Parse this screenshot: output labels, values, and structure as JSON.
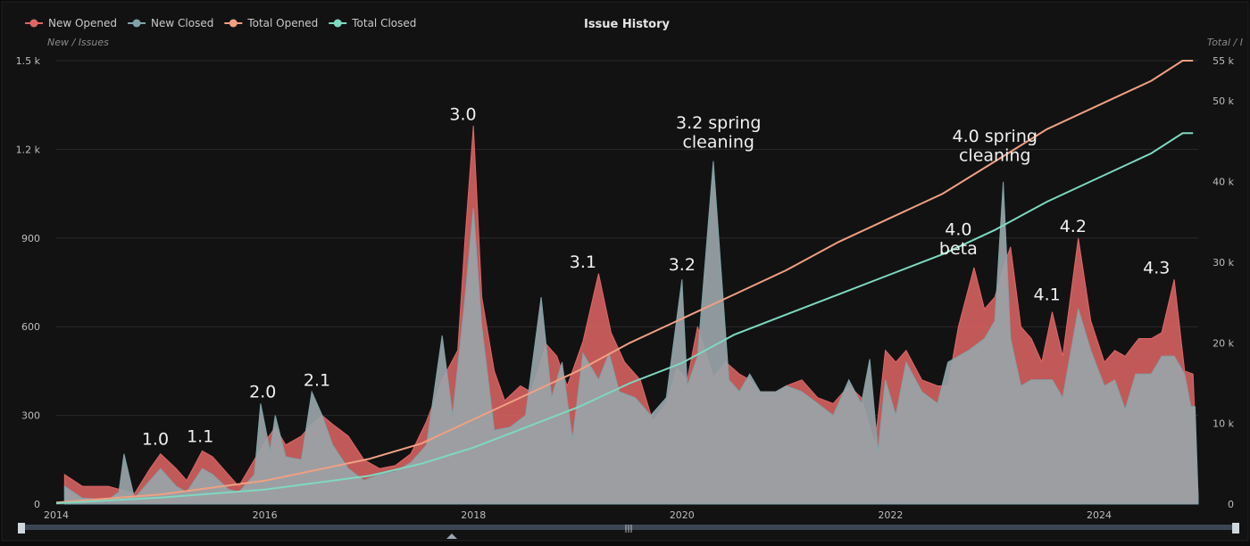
{
  "chart_data": {
    "type": "area",
    "title": "Issue History",
    "y_left_title": "New / Issues",
    "y_right_title": "Total / I",
    "y_left_ticks": [
      "0",
      "300",
      "600",
      "900",
      "1.2 k",
      "1.5 k"
    ],
    "y_right_ticks": [
      "0",
      "10 k",
      "20 k",
      "30 k",
      "40 k",
      "50 k",
      "55 k"
    ],
    "y_left_lim": [
      0,
      1500
    ],
    "y_right_lim": [
      0,
      55000
    ],
    "x_tick_labels": [
      "2014",
      "2016",
      "2018",
      "2020",
      "2022",
      "2024"
    ],
    "x_tick_values": [
      2014,
      2016,
      2018,
      2020,
      2022,
      2024
    ],
    "x_lim": [
      2014,
      2024.95
    ],
    "legend_position": "top-left",
    "series": [
      {
        "name": "New Opened",
        "color": "#e06666",
        "axis": "left",
        "kind": "area",
        "points": [
          [
            2014.08,
            100
          ],
          [
            2014.25,
            60
          ],
          [
            2014.5,
            60
          ],
          [
            2014.75,
            35
          ],
          [
            2014.9,
            120
          ],
          [
            2015.0,
            170
          ],
          [
            2015.15,
            120
          ],
          [
            2015.25,
            80
          ],
          [
            2015.4,
            180
          ],
          [
            2015.5,
            160
          ],
          [
            2015.65,
            100
          ],
          [
            2015.75,
            60
          ],
          [
            2015.9,
            150
          ],
          [
            2016.0,
            210
          ],
          [
            2016.1,
            260
          ],
          [
            2016.2,
            200
          ],
          [
            2016.35,
            230
          ],
          [
            2016.45,
            270
          ],
          [
            2016.55,
            300
          ],
          [
            2016.65,
            270
          ],
          [
            2016.8,
            230
          ],
          [
            2016.95,
            150
          ],
          [
            2017.1,
            120
          ],
          [
            2017.25,
            130
          ],
          [
            2017.4,
            170
          ],
          [
            2017.55,
            280
          ],
          [
            2017.7,
            420
          ],
          [
            2017.85,
            520
          ],
          [
            2017.92,
            900
          ],
          [
            2018.0,
            1280
          ],
          [
            2018.08,
            700
          ],
          [
            2018.2,
            450
          ],
          [
            2018.3,
            350
          ],
          [
            2018.45,
            400
          ],
          [
            2018.55,
            380
          ],
          [
            2018.7,
            540
          ],
          [
            2018.8,
            500
          ],
          [
            2018.9,
            400
          ],
          [
            2019.05,
            550
          ],
          [
            2019.2,
            780
          ],
          [
            2019.32,
            580
          ],
          [
            2019.45,
            480
          ],
          [
            2019.6,
            420
          ],
          [
            2019.72,
            280
          ],
          [
            2019.85,
            340
          ],
          [
            2019.95,
            460
          ],
          [
            2020.05,
            420
          ],
          [
            2020.15,
            600
          ],
          [
            2020.3,
            430
          ],
          [
            2020.42,
            480
          ],
          [
            2020.55,
            440
          ],
          [
            2020.65,
            420
          ],
          [
            2020.75,
            380
          ],
          [
            2020.9,
            380
          ],
          [
            2021.0,
            400
          ],
          [
            2021.15,
            420
          ],
          [
            2021.3,
            360
          ],
          [
            2021.45,
            340
          ],
          [
            2021.6,
            400
          ],
          [
            2021.72,
            360
          ],
          [
            2021.85,
            200
          ],
          [
            2021.95,
            520
          ],
          [
            2022.05,
            480
          ],
          [
            2022.15,
            520
          ],
          [
            2022.3,
            420
          ],
          [
            2022.45,
            400
          ],
          [
            2022.55,
            400
          ],
          [
            2022.65,
            600
          ],
          [
            2022.8,
            800
          ],
          [
            2022.9,
            660
          ],
          [
            2023.0,
            700
          ],
          [
            2023.08,
            800
          ],
          [
            2023.15,
            870
          ],
          [
            2023.25,
            600
          ],
          [
            2023.35,
            560
          ],
          [
            2023.45,
            480
          ],
          [
            2023.55,
            650
          ],
          [
            2023.65,
            500
          ],
          [
            2023.8,
            900
          ],
          [
            2023.92,
            620
          ],
          [
            2024.05,
            480
          ],
          [
            2024.15,
            520
          ],
          [
            2024.25,
            500
          ],
          [
            2024.38,
            560
          ],
          [
            2024.5,
            560
          ],
          [
            2024.6,
            580
          ],
          [
            2024.72,
            760
          ],
          [
            2024.82,
            450
          ],
          [
            2024.9,
            440
          ],
          [
            2024.95,
            20
          ]
        ]
      },
      {
        "name": "New Closed",
        "color": "#7fa3a8",
        "axis": "left",
        "kind": "area",
        "points": [
          [
            2014.08,
            60
          ],
          [
            2014.25,
            20
          ],
          [
            2014.5,
            15
          ],
          [
            2014.6,
            40
          ],
          [
            2014.65,
            170
          ],
          [
            2014.75,
            20
          ],
          [
            2014.9,
            80
          ],
          [
            2015.0,
            120
          ],
          [
            2015.15,
            60
          ],
          [
            2015.25,
            40
          ],
          [
            2015.4,
            120
          ],
          [
            2015.5,
            100
          ],
          [
            2015.65,
            50
          ],
          [
            2015.75,
            40
          ],
          [
            2015.9,
            100
          ],
          [
            2015.96,
            340
          ],
          [
            2016.05,
            180
          ],
          [
            2016.1,
            300
          ],
          [
            2016.2,
            160
          ],
          [
            2016.35,
            150
          ],
          [
            2016.45,
            380
          ],
          [
            2016.55,
            300
          ],
          [
            2016.65,
            200
          ],
          [
            2016.8,
            120
          ],
          [
            2016.95,
            80
          ],
          [
            2017.1,
            100
          ],
          [
            2017.25,
            110
          ],
          [
            2017.4,
            140
          ],
          [
            2017.55,
            200
          ],
          [
            2017.7,
            570
          ],
          [
            2017.8,
            300
          ],
          [
            2017.92,
            700
          ],
          [
            2018.0,
            1000
          ],
          [
            2018.08,
            600
          ],
          [
            2018.2,
            250
          ],
          [
            2018.35,
            260
          ],
          [
            2018.5,
            300
          ],
          [
            2018.65,
            700
          ],
          [
            2018.75,
            360
          ],
          [
            2018.85,
            480
          ],
          [
            2018.95,
            220
          ],
          [
            2019.05,
            510
          ],
          [
            2019.2,
            420
          ],
          [
            2019.3,
            510
          ],
          [
            2019.4,
            380
          ],
          [
            2019.55,
            360
          ],
          [
            2019.7,
            300
          ],
          [
            2019.85,
            360
          ],
          [
            2020.0,
            760
          ],
          [
            2020.05,
            400
          ],
          [
            2020.15,
            500
          ],
          [
            2020.3,
            1160
          ],
          [
            2020.45,
            420
          ],
          [
            2020.55,
            380
          ],
          [
            2020.65,
            440
          ],
          [
            2020.75,
            380
          ],
          [
            2020.9,
            380
          ],
          [
            2021.0,
            400
          ],
          [
            2021.15,
            380
          ],
          [
            2021.3,
            340
          ],
          [
            2021.45,
            300
          ],
          [
            2021.6,
            420
          ],
          [
            2021.72,
            340
          ],
          [
            2021.8,
            490
          ],
          [
            2021.88,
            180
          ],
          [
            2021.95,
            420
          ],
          [
            2022.05,
            300
          ],
          [
            2022.15,
            480
          ],
          [
            2022.3,
            380
          ],
          [
            2022.45,
            340
          ],
          [
            2022.55,
            480
          ],
          [
            2022.65,
            500
          ],
          [
            2022.75,
            520
          ],
          [
            2022.9,
            560
          ],
          [
            2023.0,
            620
          ],
          [
            2023.08,
            1090
          ],
          [
            2023.15,
            560
          ],
          [
            2023.25,
            400
          ],
          [
            2023.35,
            420
          ],
          [
            2023.45,
            420
          ],
          [
            2023.55,
            420
          ],
          [
            2023.65,
            360
          ],
          [
            2023.8,
            660
          ],
          [
            2023.92,
            520
          ],
          [
            2024.05,
            400
          ],
          [
            2024.15,
            420
          ],
          [
            2024.25,
            320
          ],
          [
            2024.35,
            440
          ],
          [
            2024.5,
            440
          ],
          [
            2024.6,
            500
          ],
          [
            2024.72,
            500
          ],
          [
            2024.82,
            440
          ],
          [
            2024.88,
            330
          ],
          [
            2024.92,
            330
          ],
          [
            2024.95,
            20
          ]
        ]
      },
      {
        "name": "Total Opened",
        "color": "#f0a083",
        "axis": "right",
        "kind": "line",
        "points": [
          [
            2014.0,
            200
          ],
          [
            2015.0,
            1200
          ],
          [
            2016.0,
            2900
          ],
          [
            2017.0,
            5600
          ],
          [
            2017.5,
            7500
          ],
          [
            2018.0,
            10500
          ],
          [
            2018.5,
            13500
          ],
          [
            2019.0,
            16500
          ],
          [
            2019.5,
            20000
          ],
          [
            2020.0,
            23000
          ],
          [
            2020.5,
            26000
          ],
          [
            2021.0,
            29000
          ],
          [
            2021.5,
            32500
          ],
          [
            2022.0,
            35500
          ],
          [
            2022.5,
            38500
          ],
          [
            2023.0,
            42500
          ],
          [
            2023.5,
            46500
          ],
          [
            2024.0,
            49500
          ],
          [
            2024.5,
            52500
          ],
          [
            2024.8,
            55000
          ],
          [
            2024.9,
            55000
          ]
        ]
      },
      {
        "name": "Total Closed",
        "color": "#7fd8c0",
        "axis": "right",
        "kind": "line",
        "points": [
          [
            2014.0,
            100
          ],
          [
            2015.0,
            800
          ],
          [
            2016.0,
            1800
          ],
          [
            2017.0,
            3500
          ],
          [
            2017.5,
            5000
          ],
          [
            2018.0,
            7000
          ],
          [
            2018.5,
            9500
          ],
          [
            2019.0,
            12000
          ],
          [
            2019.5,
            15000
          ],
          [
            2020.0,
            17500
          ],
          [
            2020.5,
            21000
          ],
          [
            2021.0,
            23500
          ],
          [
            2021.5,
            26000
          ],
          [
            2022.0,
            28500
          ],
          [
            2022.5,
            31000
          ],
          [
            2023.0,
            34000
          ],
          [
            2023.5,
            37500
          ],
          [
            2024.0,
            40500
          ],
          [
            2024.5,
            43500
          ],
          [
            2024.8,
            46000
          ],
          [
            2024.9,
            46000
          ]
        ]
      }
    ],
    "annotations": [
      {
        "text": "1.0",
        "x": 2014.95,
        "y": 200
      },
      {
        "text": "1.1",
        "x": 2015.38,
        "y": 210
      },
      {
        "text": "2.0",
        "x": 2015.98,
        "y": 360
      },
      {
        "text": "2.1",
        "x": 2016.5,
        "y": 400
      },
      {
        "text": "3.0",
        "x": 2017.9,
        "y": 1300
      },
      {
        "text": "3.1",
        "x": 2019.05,
        "y": 800
      },
      {
        "text": "3.2",
        "x": 2020.0,
        "y": 790
      },
      {
        "text": "3.2 spring",
        "x": 2020.35,
        "y": 1270
      },
      {
        "text": "cleaning",
        "x": 2020.35,
        "y": 1205
      },
      {
        "text": "4.0",
        "x": 2022.65,
        "y": 910
      },
      {
        "text": "beta",
        "x": 2022.65,
        "y": 845
      },
      {
        "text": "4.0 spring",
        "x": 2023.0,
        "y": 1225
      },
      {
        "text": "cleaning",
        "x": 2023.0,
        "y": 1160
      },
      {
        "text": "4.1",
        "x": 2023.5,
        "y": 690
      },
      {
        "text": "4.2",
        "x": 2023.75,
        "y": 920
      },
      {
        "text": "4.3",
        "x": 2024.55,
        "y": 780
      }
    ]
  }
}
